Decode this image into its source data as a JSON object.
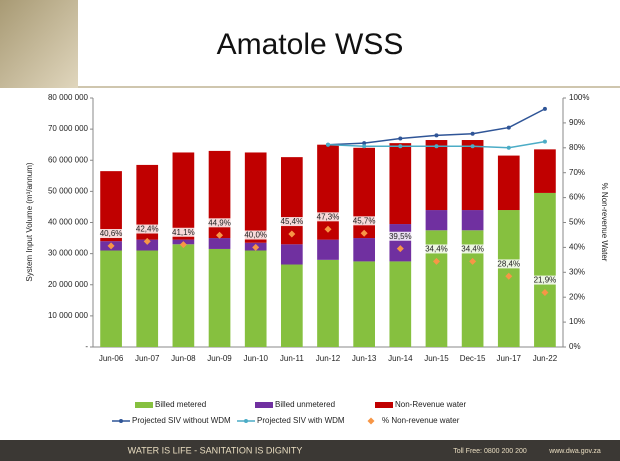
{
  "slide": {
    "footer_left": "WATER IS LIFE - SANITATION IS DIGNITY",
    "footer_phone": "Toll Free: 0800 200 200",
    "footer_web": "www.dwa.gov.za"
  },
  "chart_data": {
    "type": "bar",
    "stacked": true,
    "title": "Amatole WSS",
    "y_label": "System Input Volume (m³/annum)",
    "y2_label": "% Non-revenue Water",
    "categories": [
      "Jun-06",
      "Jun-07",
      "Jun-08",
      "Jun-09",
      "Jun-10",
      "Jun-11",
      "Jun-12",
      "Jun-13",
      "Jun-14",
      "Jun-15",
      "Dec-15",
      "Jun-17",
      "Jun-22"
    ],
    "series": [
      {
        "name": "Billed metered",
        "type": "bar",
        "color": "#86c03f",
        "values": [
          31000000,
          31000000,
          33000000,
          31500000,
          31000000,
          26500000,
          28000000,
          27500000,
          27500000,
          37500000,
          37500000,
          44000000,
          49500000
        ]
      },
      {
        "name": "Billed unmetered",
        "type": "bar",
        "color": "#7030a0",
        "values": [
          3000000,
          3500000,
          1500000,
          3500000,
          2500000,
          6500000,
          6500000,
          7500000,
          12000000,
          6500000,
          6500000,
          0,
          0
        ]
      },
      {
        "name": "Non-Revenue water",
        "type": "bar",
        "color": "#c00000",
        "values": [
          22500000,
          24000000,
          28000000,
          28000000,
          29000000,
          28000000,
          30500000,
          29000000,
          26000000,
          22500000,
          22500000,
          17500000,
          14000000
        ]
      },
      {
        "name": "Projected SIV without WDM",
        "type": "line",
        "color": "#2f5597",
        "values": [
          null,
          null,
          null,
          null,
          null,
          null,
          65000000,
          65500000,
          67000000,
          68000000,
          68500000,
          70500000,
          76500000
        ]
      },
      {
        "name": "Projected SIV with WDM",
        "type": "line",
        "color": "#4bacc6",
        "values": [
          null,
          null,
          null,
          null,
          null,
          null,
          65000000,
          64500000,
          64500000,
          64500000,
          64500000,
          64000000,
          66000000
        ]
      },
      {
        "name": "% Non-revenue water",
        "type": "scatter",
        "axis": "y2",
        "color": "#f79646",
        "values": [
          40.6,
          42.4,
          41.1,
          44.9,
          40.0,
          45.4,
          47.3,
          45.7,
          39.5,
          34.4,
          34.4,
          28.4,
          21.9
        ],
        "value_labels": [
          "40,6%",
          "42,4%",
          "41,1%",
          "44,9%",
          "40,0%",
          "45,4%",
          "47,3%",
          "45,7%",
          "39,5%",
          "34,4%",
          "34,4%",
          "28,4%",
          "21,9%"
        ]
      }
    ],
    "ylim": [
      0,
      80000000
    ],
    "yticks": [
      {
        "value": 0,
        "label": "-"
      },
      {
        "value": 10000000,
        "label": "10 000 000"
      },
      {
        "value": 20000000,
        "label": "20 000 000"
      },
      {
        "value": 30000000,
        "label": "30 000 000"
      },
      {
        "value": 40000000,
        "label": "40 000 000"
      },
      {
        "value": 50000000,
        "label": "50 000 000"
      },
      {
        "value": 60000000,
        "label": "60 000 000"
      },
      {
        "value": 70000000,
        "label": "70 000 000"
      },
      {
        "value": 80000000,
        "label": "80 000 000"
      }
    ],
    "y2lim": [
      0,
      100
    ],
    "y2ticks": [
      {
        "value": 0,
        "label": "0%"
      },
      {
        "value": 10,
        "label": "10%"
      },
      {
        "value": 20,
        "label": "20%"
      },
      {
        "value": 30,
        "label": "30%"
      },
      {
        "value": 40,
        "label": "40%"
      },
      {
        "value": 50,
        "label": "50%"
      },
      {
        "value": 60,
        "label": "60%"
      },
      {
        "value": 70,
        "label": "70%"
      },
      {
        "value": 80,
        "label": "80%"
      },
      {
        "value": 90,
        "label": "90%"
      },
      {
        "value": 100,
        "label": "100%"
      }
    ]
  }
}
